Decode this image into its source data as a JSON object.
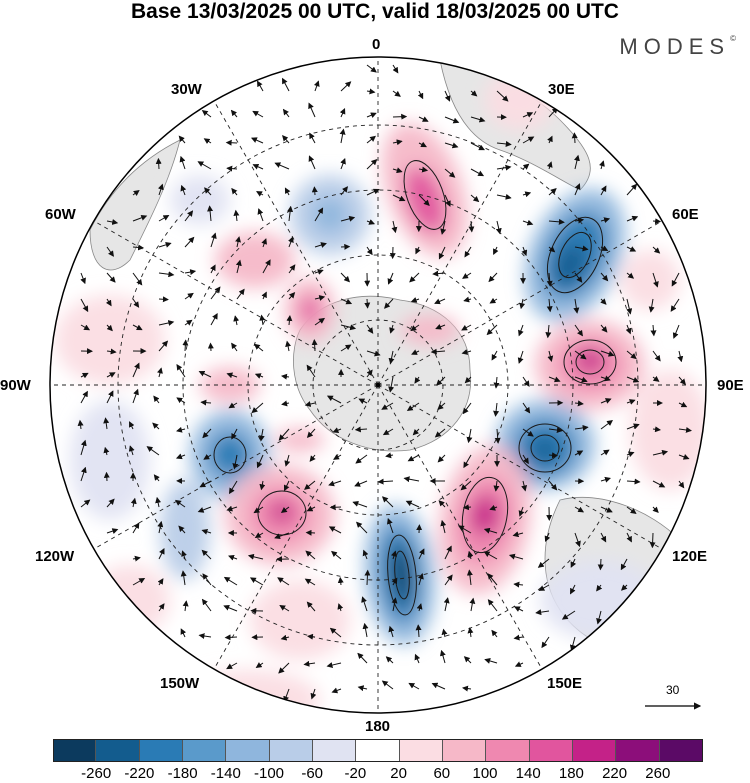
{
  "title": "Base 13/03/2025 00 UTC, valid 18/03/2025 00 UTC",
  "brand": "MODES",
  "brand_mark": "©",
  "longitude_labels": {
    "deg0": "0",
    "deg30e": "30E",
    "deg60e": "60E",
    "deg90e": "90E",
    "deg120e": "120E",
    "deg150e": "150E",
    "deg180": "180",
    "deg150w": "150W",
    "deg120w": "120W",
    "deg90w": "90W",
    "deg60w": "60W",
    "deg30w": "30W"
  },
  "reference_vector_label": "30",
  "colorbar": {
    "colors": [
      "#0c3a5e",
      "#135c8e",
      "#2a7bb5",
      "#5a9acb",
      "#8fb6dd",
      "#b9cde8",
      "#e0e3f2",
      "#ffffff",
      "#fbdde3",
      "#f6b8c8",
      "#ef88b0",
      "#e1559e",
      "#c42288",
      "#8c0e7a",
      "#5b0a66"
    ],
    "ticks": [
      "-260",
      "-220",
      "-180",
      "-140",
      "-100",
      "-60",
      "-20",
      "20",
      "60",
      "100",
      "140",
      "180",
      "220",
      "260"
    ]
  }
}
